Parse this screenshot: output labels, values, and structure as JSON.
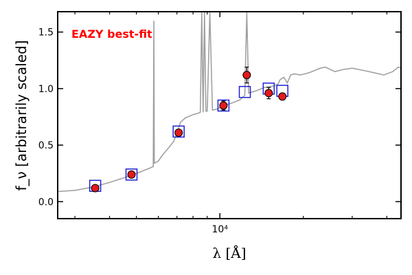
{
  "chart_data": {
    "type": "scatter",
    "annotation": "EAZY best-fit",
    "xlabel": "λ [Å]",
    "ylabel": "f_ν [arbitrarily scaled]",
    "xscale": "log",
    "xlim": [
      2600,
      45000
    ],
    "ylim": [
      -0.15,
      1.68
    ],
    "x_tick_labels": [
      {
        "value": 10000,
        "label": "10⁴"
      }
    ],
    "y_ticks": [
      0.0,
      0.5,
      1.0,
      1.5
    ],
    "y_tick_labels": [
      "0.0",
      "0.5",
      "1.0",
      "1.5"
    ],
    "grid": false,
    "colors": {
      "template": "#a0a0a0",
      "observed_fill": "#e31a1c",
      "model_box": "#1f1fd6",
      "annotation": "#ff0000"
    },
    "series": [
      {
        "marker": "filled circle",
        "points": [
          {
            "x": 3550,
            "y": 0.12,
            "err": 0.0
          },
          {
            "x": 4800,
            "y": 0.24,
            "err": 0.0
          },
          {
            "x": 7100,
            "y": 0.61,
            "err": 0.02
          },
          {
            "x": 10300,
            "y": 0.85,
            "err": 0.04
          },
          {
            "x": 12500,
            "y": 1.12,
            "err": 0.07
          },
          {
            "x": 15000,
            "y": 0.96,
            "err": 0.05
          },
          {
            "x": 16800,
            "y": 0.93,
            "err": 0.03
          }
        ]
      },
      {
        "marker": "open square",
        "points": [
          {
            "x": 3550,
            "y": 0.14
          },
          {
            "x": 4800,
            "y": 0.24
          },
          {
            "x": 7100,
            "y": 0.62
          },
          {
            "x": 10300,
            "y": 0.85
          },
          {
            "x": 12300,
            "y": 0.97
          },
          {
            "x": 15000,
            "y": 1.0
          },
          {
            "x": 16800,
            "y": 0.98
          }
        ]
      },
      {
        "marker": "line",
        "points": [
          {
            "x": 2600,
            "y": 0.09
          },
          {
            "x": 3000,
            "y": 0.1
          },
          {
            "x": 3500,
            "y": 0.13
          },
          {
            "x": 4000,
            "y": 0.17
          },
          {
            "x": 4500,
            "y": 0.21
          },
          {
            "x": 5000,
            "y": 0.25
          },
          {
            "x": 5500,
            "y": 0.29
          },
          {
            "x": 5750,
            "y": 0.31
          },
          {
            "x": 5780,
            "y": 1.6
          },
          {
            "x": 5800,
            "y": 0.34
          },
          {
            "x": 6000,
            "y": 0.36
          },
          {
            "x": 6200,
            "y": 0.41
          },
          {
            "x": 6500,
            "y": 0.47
          },
          {
            "x": 6800,
            "y": 0.53
          },
          {
            "x": 7000,
            "y": 0.6
          },
          {
            "x": 7200,
            "y": 0.7
          },
          {
            "x": 7500,
            "y": 0.74
          },
          {
            "x": 8000,
            "y": 0.77
          },
          {
            "x": 8300,
            "y": 0.78
          },
          {
            "x": 8500,
            "y": 0.79
          },
          {
            "x": 8600,
            "y": 1.68
          },
          {
            "x": 8700,
            "y": 0.79
          },
          {
            "x": 8800,
            "y": 1.68
          },
          {
            "x": 8900,
            "y": 0.8
          },
          {
            "x": 9000,
            "y": 0.8
          },
          {
            "x": 9200,
            "y": 1.68
          },
          {
            "x": 9400,
            "y": 0.81
          },
          {
            "x": 9800,
            "y": 0.82
          },
          {
            "x": 10300,
            "y": 0.85
          },
          {
            "x": 11000,
            "y": 0.87
          },
          {
            "x": 11800,
            "y": 0.9
          },
          {
            "x": 12300,
            "y": 0.94
          },
          {
            "x": 12500,
            "y": 1.68
          },
          {
            "x": 12700,
            "y": 0.96
          },
          {
            "x": 13500,
            "y": 0.98
          },
          {
            "x": 14500,
            "y": 1.01
          },
          {
            "x": 15500,
            "y": 1.02
          },
          {
            "x": 16200,
            "y": 1.04
          },
          {
            "x": 16500,
            "y": 1.08
          },
          {
            "x": 17000,
            "y": 1.1
          },
          {
            "x": 17500,
            "y": 1.05
          },
          {
            "x": 18000,
            "y": 1.12
          },
          {
            "x": 18500,
            "y": 1.13
          },
          {
            "x": 19500,
            "y": 1.12
          },
          {
            "x": 21000,
            "y": 1.14
          },
          {
            "x": 23000,
            "y": 1.18
          },
          {
            "x": 24000,
            "y": 1.19
          },
          {
            "x": 26000,
            "y": 1.15
          },
          {
            "x": 28000,
            "y": 1.17
          },
          {
            "x": 30000,
            "y": 1.18
          },
          {
            "x": 33000,
            "y": 1.16
          },
          {
            "x": 36000,
            "y": 1.14
          },
          {
            "x": 39000,
            "y": 1.12
          },
          {
            "x": 42000,
            "y": 1.15
          },
          {
            "x": 44000,
            "y": 1.19
          },
          {
            "x": 45000,
            "y": 1.18
          }
        ]
      }
    ]
  }
}
